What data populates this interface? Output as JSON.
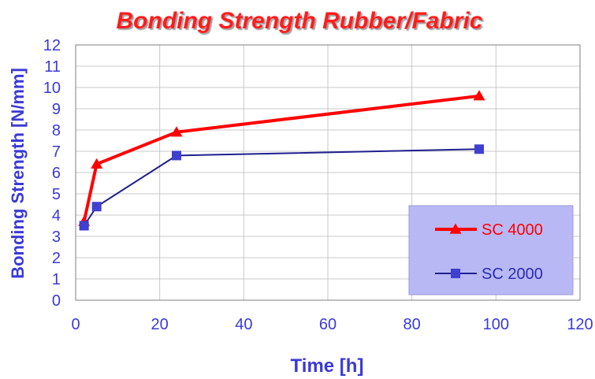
{
  "chart_data": {
    "type": "line",
    "title": "Bonding Strength Rubber/Fabric",
    "xlabel": "Time [h]",
    "ylabel": "Bonding Strength [N/mm]",
    "xlim": [
      0,
      120
    ],
    "ylim": [
      0,
      12
    ],
    "x_ticks": [
      0,
      20,
      40,
      60,
      80,
      100,
      120
    ],
    "y_ticks": [
      0,
      1,
      2,
      3,
      4,
      5,
      6,
      7,
      8,
      9,
      10,
      11,
      12
    ],
    "grid": true,
    "legend_position": "bottom-right",
    "series": [
      {
        "name": "SC 4000",
        "color": "#ff0000",
        "marker": "triangle",
        "x": [
          2,
          5,
          24,
          96
        ],
        "y": [
          3.7,
          6.4,
          7.9,
          9.6
        ]
      },
      {
        "name": "SC 2000",
        "color": "#1f1f8f",
        "marker_color": "#3f3fd0",
        "marker": "square",
        "x": [
          2,
          5,
          24,
          96
        ],
        "y": [
          3.5,
          4.4,
          6.8,
          7.1
        ]
      }
    ],
    "colors": {
      "title": "#ff1a1a",
      "axis_text": "#3a3ad6",
      "grid": "#c8c8c8",
      "legend_bg": "#b8b8f4"
    }
  }
}
